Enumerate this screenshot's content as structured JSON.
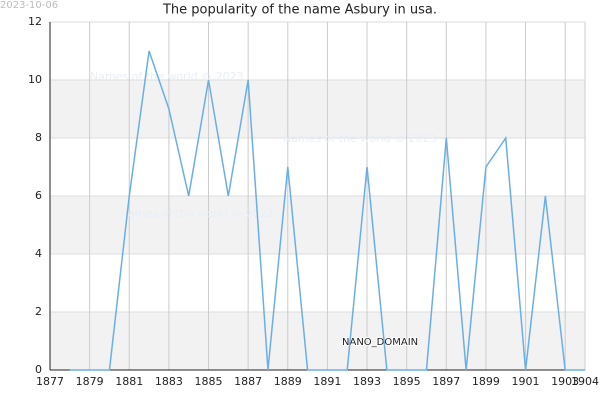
{
  "chart_data": {
    "type": "line",
    "title": "The popularity of the name Asbury in usa.",
    "date_stamp": "2023-10-06",
    "annotations": [
      "Names of the world © 2023",
      "Names of the world © 2023",
      "Names of the world © 2023",
      "NANO_DOMAIN"
    ],
    "x": [
      1878,
      1879,
      1880,
      1881,
      1882,
      1883,
      1884,
      1885,
      1886,
      1887,
      1888,
      1889,
      1890,
      1891,
      1892,
      1893,
      1894,
      1895,
      1896,
      1897,
      1898,
      1899,
      1900,
      1901,
      1902,
      1903,
      1904
    ],
    "values": [
      0,
      0,
      0,
      6,
      11,
      9,
      6,
      10,
      6,
      10,
      0,
      7,
      0,
      0,
      0,
      7,
      0,
      0,
      0,
      8,
      0,
      7,
      8,
      0,
      6,
      0,
      0
    ],
    "color": "#6aaee8",
    "xlim": [
      1877,
      1904
    ],
    "xticks": [
      1877,
      1879,
      1881,
      1883,
      1885,
      1887,
      1889,
      1891,
      1893,
      1895,
      1897,
      1899,
      1901,
      1903,
      1904
    ],
    "ylim": [
      0,
      12
    ],
    "yticks": [
      0,
      2,
      4,
      6,
      8,
      10,
      12
    ],
    "grid": true,
    "band_color": "#f2f2f2"
  }
}
